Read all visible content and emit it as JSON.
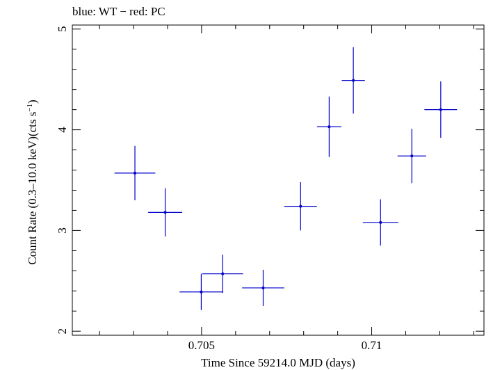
{
  "chart_data": {
    "type": "scatter",
    "title": "blue: WT − red: PC",
    "xlabel": "Time Since 59214.0 MJD (days)",
    "ylabel_main": "Count Rate (0.3–10.0 keV)(cts s",
    "ylabel_sup": "−1",
    "ylabel_end": ")",
    "xlim": [
      0.7012,
      0.7133
    ],
    "ylim": [
      1.96,
      5.04
    ],
    "x_major_ticks": [
      0.705,
      0.71
    ],
    "x_tick_labels": [
      "0.705",
      "0.71"
    ],
    "x_minor_step": 0.001,
    "y_major_ticks": [
      2,
      3,
      4,
      5
    ],
    "y_tick_labels": [
      "2",
      "3",
      "4",
      "5"
    ],
    "y_minor_step": 0.2,
    "grid": false,
    "series": [
      {
        "color": "#0000cc",
        "points": [
          {
            "x": 0.70304,
            "xerr": 0.0006,
            "y": 3.57,
            "yerr": 0.27
          },
          {
            "x": 0.70393,
            "xerr": 0.0005,
            "y": 3.18,
            "yerr": 0.24
          },
          {
            "x": 0.70499,
            "xerr": 0.00064,
            "y": 2.39,
            "yerr": 0.18
          },
          {
            "x": 0.70562,
            "xerr": 0.0006,
            "y": 2.57,
            "yerr": 0.19
          },
          {
            "x": 0.70681,
            "xerr": 0.00062,
            "y": 2.43,
            "yerr": 0.18
          },
          {
            "x": 0.70791,
            "xerr": 0.00048,
            "y": 3.24,
            "yerr": 0.24
          },
          {
            "x": 0.70875,
            "xerr": 0.00036,
            "y": 4.03,
            "yerr": 0.3
          },
          {
            "x": 0.70946,
            "xerr": 0.00034,
            "y": 4.49,
            "yerr": 0.33
          },
          {
            "x": 0.71026,
            "xerr": 0.00052,
            "y": 3.08,
            "yerr": 0.23
          },
          {
            "x": 0.71118,
            "xerr": 0.00042,
            "y": 3.74,
            "yerr": 0.27
          },
          {
            "x": 0.71203,
            "xerr": 0.00048,
            "y": 4.2,
            "yerr": 0.28
          }
        ]
      }
    ]
  }
}
